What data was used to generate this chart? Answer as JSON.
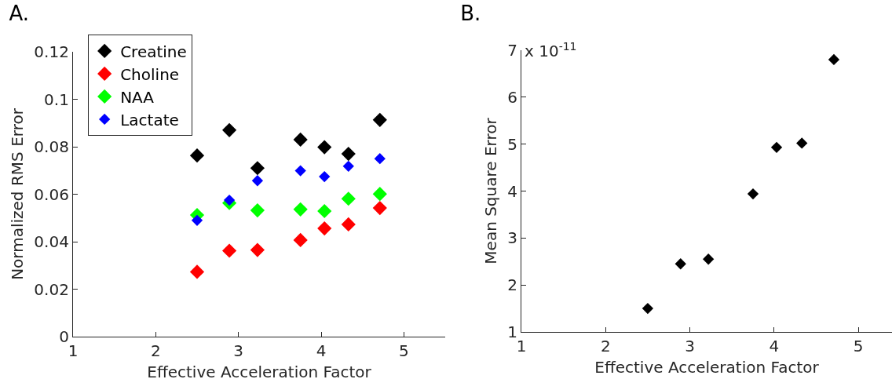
{
  "chart_data": [
    {
      "type": "scatter",
      "title": "A.",
      "xlabel": "Effective Acceleration Factor",
      "ylabel": "Normalized RMS Error",
      "x": [
        2.5,
        2.89,
        3.23,
        3.75,
        4.04,
        4.33,
        4.71
      ],
      "xlim": [
        1,
        5.5
      ],
      "xticks": [
        1,
        2,
        3,
        4,
        5
      ],
      "ylim": [
        0,
        0.12
      ],
      "yticks": [
        0,
        0.02,
        0.04,
        0.06,
        0.08,
        0.1,
        0.12
      ],
      "grid": false,
      "legend": "top left",
      "marker": "diamond",
      "series": [
        {
          "name": "Creatine",
          "color": "#000000",
          "values": [
            0.0763,
            0.087,
            0.071,
            0.083,
            0.0798,
            0.077,
            0.0913
          ]
        },
        {
          "name": "Choline",
          "color": "#ff0000",
          "values": [
            0.0273,
            0.0362,
            0.0365,
            0.0407,
            0.0456,
            0.0473,
            0.0542
          ]
        },
        {
          "name": "NAA",
          "color": "#00ff00",
          "values": [
            0.0512,
            0.0563,
            0.0532,
            0.0536,
            0.0529,
            0.0581,
            0.0601
          ]
        },
        {
          "name": "Lactate",
          "color": "#0000ff",
          "values": [
            0.049,
            0.0575,
            0.0657,
            0.0699,
            0.0674,
            0.0718,
            0.075
          ]
        }
      ]
    },
    {
      "type": "scatter",
      "title": "B.",
      "xlabel": "Effective Acceleration Factor",
      "ylabel": "Mean Square Error",
      "annotations": [
        "x 10$^{-11}$"
      ],
      "x": [
        2.5,
        2.89,
        3.22,
        3.75,
        4.03,
        4.33,
        4.71
      ],
      "xlim": [
        1,
        5.4
      ],
      "xticks": [
        1,
        2,
        3,
        4,
        5
      ],
      "ylim": [
        1,
        7
      ],
      "yticks": [
        1,
        2,
        3,
        4,
        5,
        6,
        7
      ],
      "grid": false,
      "legend": false,
      "marker": "diamond",
      "series": [
        {
          "color": "#000000",
          "values": [
            1.5,
            2.45,
            2.55,
            3.94,
            4.93,
            5.02,
            6.8
          ]
        }
      ]
    }
  ]
}
